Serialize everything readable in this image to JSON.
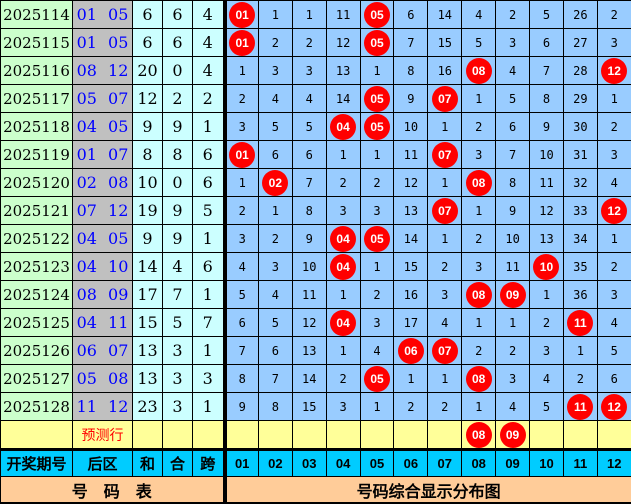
{
  "rows": [
    {
      "id": "2025114",
      "back": "01 05",
      "sum": "6",
      "he": "6",
      "kua": "4",
      "cells": [
        "01",
        "1",
        "1",
        "11",
        "05",
        "6",
        "14",
        "4",
        "2",
        "5",
        "26",
        "2"
      ],
      "hits": [
        0,
        4
      ]
    },
    {
      "id": "2025115",
      "back": "01 05",
      "sum": "6",
      "he": "6",
      "kua": "4",
      "cells": [
        "01",
        "2",
        "2",
        "12",
        "05",
        "7",
        "15",
        "5",
        "3",
        "6",
        "27",
        "3"
      ],
      "hits": [
        0,
        4
      ]
    },
    {
      "id": "2025116",
      "back": "08 12",
      "sum": "20",
      "he": "0",
      "kua": "4",
      "cells": [
        "1",
        "3",
        "3",
        "13",
        "1",
        "8",
        "16",
        "08",
        "4",
        "7",
        "28",
        "12"
      ],
      "hits": [
        7,
        11
      ]
    },
    {
      "id": "2025117",
      "back": "05 07",
      "sum": "12",
      "he": "2",
      "kua": "2",
      "cells": [
        "2",
        "4",
        "4",
        "14",
        "05",
        "9",
        "07",
        "1",
        "5",
        "8",
        "29",
        "1"
      ],
      "hits": [
        4,
        6
      ]
    },
    {
      "id": "2025118",
      "back": "04 05",
      "sum": "9",
      "he": "9",
      "kua": "1",
      "cells": [
        "3",
        "5",
        "5",
        "04",
        "05",
        "10",
        "1",
        "2",
        "6",
        "9",
        "30",
        "2"
      ],
      "hits": [
        3,
        4
      ]
    },
    {
      "id": "2025119",
      "back": "01 07",
      "sum": "8",
      "he": "8",
      "kua": "6",
      "cells": [
        "01",
        "6",
        "6",
        "1",
        "1",
        "11",
        "07",
        "3",
        "7",
        "10",
        "31",
        "3"
      ],
      "hits": [
        0,
        6
      ]
    },
    {
      "id": "2025120",
      "back": "02 08",
      "sum": "10",
      "he": "0",
      "kua": "6",
      "cells": [
        "1",
        "02",
        "7",
        "2",
        "2",
        "12",
        "1",
        "08",
        "8",
        "11",
        "32",
        "4"
      ],
      "hits": [
        1,
        7
      ]
    },
    {
      "id": "2025121",
      "back": "07 12",
      "sum": "19",
      "he": "9",
      "kua": "5",
      "cells": [
        "2",
        "1",
        "8",
        "3",
        "3",
        "13",
        "07",
        "1",
        "9",
        "12",
        "33",
        "12"
      ],
      "hits": [
        6,
        11
      ]
    },
    {
      "id": "2025122",
      "back": "04 05",
      "sum": "9",
      "he": "9",
      "kua": "1",
      "cells": [
        "3",
        "2",
        "9",
        "04",
        "05",
        "14",
        "1",
        "2",
        "10",
        "13",
        "34",
        "1"
      ],
      "hits": [
        3,
        4
      ]
    },
    {
      "id": "2025123",
      "back": "04 10",
      "sum": "14",
      "he": "4",
      "kua": "6",
      "cells": [
        "4",
        "3",
        "10",
        "04",
        "1",
        "15",
        "2",
        "3",
        "11",
        "10",
        "35",
        "2"
      ],
      "hits": [
        3,
        9
      ]
    },
    {
      "id": "2025124",
      "back": "08 09",
      "sum": "17",
      "he": "7",
      "kua": "1",
      "cells": [
        "5",
        "4",
        "11",
        "1",
        "2",
        "16",
        "3",
        "08",
        "09",
        "1",
        "36",
        "3"
      ],
      "hits": [
        7,
        8
      ]
    },
    {
      "id": "2025125",
      "back": "04 11",
      "sum": "15",
      "he": "5",
      "kua": "7",
      "cells": [
        "6",
        "5",
        "12",
        "04",
        "3",
        "17",
        "4",
        "1",
        "1",
        "2",
        "11",
        "4"
      ],
      "hits": [
        3,
        10
      ]
    },
    {
      "id": "2025126",
      "back": "06 07",
      "sum": "13",
      "he": "3",
      "kua": "1",
      "cells": [
        "7",
        "6",
        "13",
        "1",
        "4",
        "06",
        "07",
        "2",
        "2",
        "3",
        "1",
        "5"
      ],
      "hits": [
        5,
        6
      ]
    },
    {
      "id": "2025127",
      "back": "05 08",
      "sum": "13",
      "he": "3",
      "kua": "3",
      "cells": [
        "8",
        "7",
        "14",
        "2",
        "05",
        "1",
        "1",
        "08",
        "3",
        "4",
        "2",
        "6"
      ],
      "hits": [
        4,
        7
      ]
    },
    {
      "id": "2025128",
      "back": "11 12",
      "sum": "23",
      "he": "3",
      "kua": "1",
      "cells": [
        "9",
        "8",
        "15",
        "3",
        "1",
        "2",
        "2",
        "1",
        "4",
        "5",
        "11",
        "12"
      ],
      "hits": [
        10,
        11
      ]
    }
  ],
  "prediction": {
    "label": "预测行",
    "cells": [
      "",
      "",
      "",
      "",
      "",
      "",
      "",
      "08",
      "09",
      "",
      "",
      ""
    ],
    "hits": [
      7,
      8
    ]
  },
  "header": {
    "period": "开奖期号",
    "back": "后区",
    "sum": "和",
    "he": "合",
    "kua": "跨",
    "numbers": [
      "01",
      "02",
      "03",
      "04",
      "05",
      "06",
      "07",
      "08",
      "09",
      "10",
      "11",
      "12"
    ]
  },
  "footer": {
    "left": "号　码　表",
    "right": "号码综合显示分布图"
  },
  "colors": {
    "ball": "#ff0000",
    "cell": "#99ccff",
    "id": "#ccffcc",
    "back": "#c0c0c0",
    "stat": "#ccffff",
    "prediction": "#ffff99",
    "header": "#00ccff",
    "footer": "#ffcc99"
  }
}
